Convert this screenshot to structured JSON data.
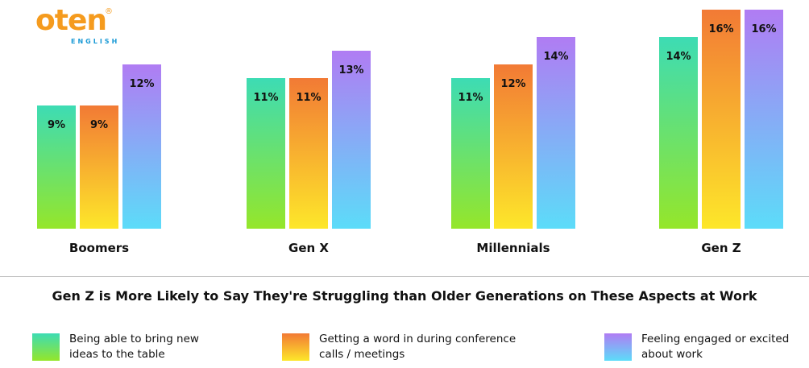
{
  "logo": {
    "word": "oten",
    "registered": "®",
    "subtitle": "ENGLISH"
  },
  "chart_data": {
    "type": "bar",
    "title": "Gen Z is More Likely to Say They're Struggling than Older Generations on These Aspects at Work",
    "categories": [
      "Boomers",
      "Gen X",
      "Millennials",
      "Gen Z"
    ],
    "series": [
      {
        "name": "Being able to bring new ideas to the table",
        "values": [
          9,
          11,
          11,
          14
        ],
        "labels": [
          "9%",
          "11%",
          "11%",
          "14%"
        ],
        "gradient": [
          "#3ddcb4",
          "#95e62a"
        ]
      },
      {
        "name": "Getting a word in during conference calls / meetings",
        "values": [
          9,
          11,
          12,
          16
        ],
        "labels": [
          "9%",
          "11%",
          "12%",
          "16%"
        ],
        "gradient": [
          "#f27a35",
          "#fde72a"
        ]
      },
      {
        "name": "Feeling engaged or excited about work",
        "values": [
          12,
          13,
          14,
          16
        ],
        "labels": [
          "12%",
          "13%",
          "14%",
          "16%"
        ],
        "gradient": [
          "#b07cf3",
          "#5cdcf9"
        ]
      }
    ],
    "ylim": [
      0,
      16
    ],
    "grid": false,
    "legend": "bottom"
  },
  "legend": {
    "items": [
      {
        "line1": "Being able to bring new",
        "line2": "ideas to the table"
      },
      {
        "line1": "Getting a word in during conference",
        "line2": "calls / meetings"
      },
      {
        "line1": "Feeling engaged or excited",
        "line2": "about work"
      }
    ]
  }
}
